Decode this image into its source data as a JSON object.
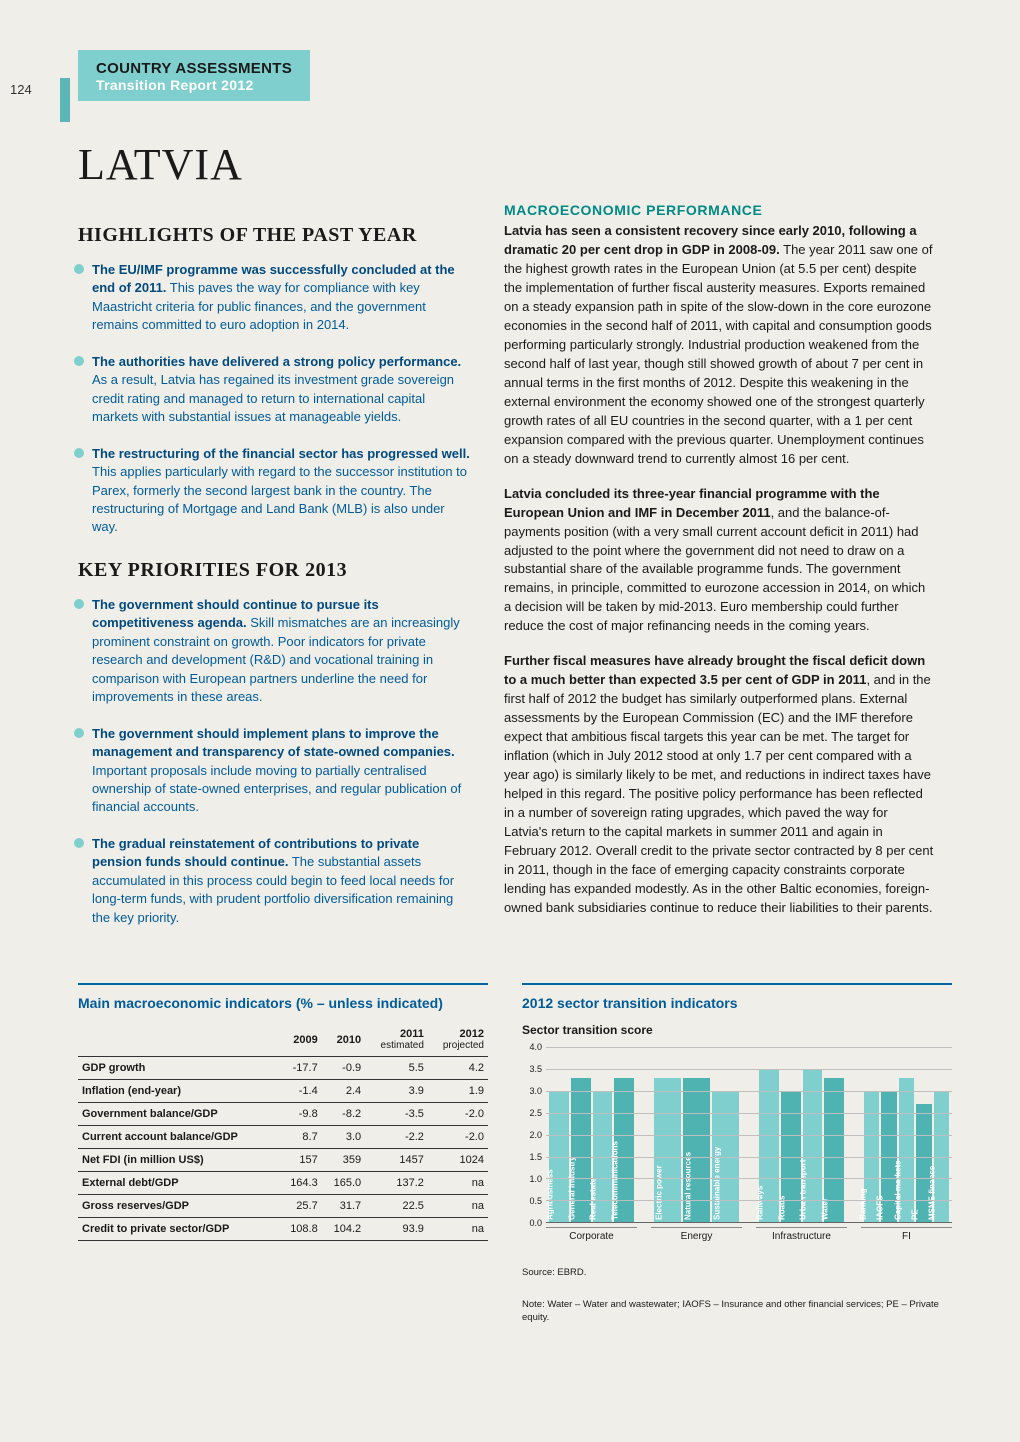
{
  "page_number": "124",
  "header": {
    "line1": "COUNTRY ASSESSMENTS",
    "line2": "Transition Report 2012"
  },
  "country": "LATVIA",
  "highlights": {
    "heading": "HIGHLIGHTS OF THE PAST YEAR",
    "items": [
      {
        "lead": "The EU/IMF programme was successfully concluded at the end of 2011.",
        "rest": " This paves the way for compliance with key Maastricht criteria for public finances, and the government remains committed to euro adoption in 2014."
      },
      {
        "lead": "The authorities have delivered a strong policy performance.",
        "rest": " As a result, Latvia has regained its investment grade sovereign credit rating and managed to return to international capital markets with substantial issues at manageable yields."
      },
      {
        "lead": "The restructuring of the financial sector has progressed well.",
        "rest": " This applies particularly with regard to the successor institution to Parex, formerly the second largest bank in the country. The restructuring of Mortgage and Land Bank (MLB) is also under way."
      }
    ]
  },
  "priorities": {
    "heading": "KEY PRIORITIES FOR 2013",
    "items": [
      {
        "lead": "The government should continue to pursue its competitiveness agenda.",
        "rest": " Skill mismatches are an increasingly prominent constraint on growth. Poor indicators for private research and development (R&D) and vocational training in comparison with European partners underline the need for improvements in these areas."
      },
      {
        "lead": "The government should implement plans to improve the management and transparency of state-owned companies. ",
        "rest": " Important proposals include moving to partially centralised ownership of state-owned enterprises, and regular publication of financial accounts."
      },
      {
        "lead": "The gradual reinstatement of contributions to private pension funds should continue.",
        "rest": " The substantial assets accumulated in this process could begin to feed local needs for long-term funds, with prudent portfolio diversification remaining the key priority."
      }
    ]
  },
  "macro": {
    "heading": "MACROECONOMIC PERFORMANCE",
    "paras": [
      {
        "lead": "Latvia has seen a consistent recovery since early 2010, following a dramatic 20 per cent drop in GDP in 2008-09.",
        "rest": " The year 2011 saw one of the highest growth rates in the European Union (at 5.5 per cent) despite the implementation of further fiscal austerity measures. Exports remained on a steady expansion path in spite of the slow-down in the core eurozone economies in the second half of 2011, with capital and consumption goods performing particularly strongly. Industrial production weakened from the second half of last year, though still showed growth of about 7 per cent in annual terms in the first months of 2012. Despite this weakening in the external environment the economy showed one of the strongest quarterly growth rates of all EU countries in the second quarter, with a 1 per cent expansion compared with the previous quarter. Unemployment continues on a steady downward trend to currently almost 16 per cent."
      },
      {
        "lead": "Latvia concluded its three-year financial programme with the European Union and IMF in December 2011",
        "rest": ", and the balance-of-payments position (with a very small current account deficit in 2011) had adjusted to the point where the government did not need to draw on a substantial share of the available programme funds. The government remains, in principle, committed to eurozone accession in 2014, on which a decision will be taken by mid-2013. Euro membership could further reduce the cost of major refinancing needs in the coming years."
      },
      {
        "lead": "Further fiscal measures have already brought the fiscal deficit down to a much better than expected 3.5 per cent of GDP in 2011",
        "rest": ", and in the first half of 2012 the budget has similarly outperformed plans. External assessments by the European Commission (EC) and the IMF therefore expect that ambitious fiscal targets this year can be met. The target for inflation (which in July 2012 stood at only 1.7 per cent compared with a year ago) is similarly likely to be met, and reductions in indirect taxes have helped in this regard. The positive policy performance has been reflected in a number of sovereign rating upgrades, which paved the way for Latvia's return to the capital markets in summer 2011 and again in February 2012. Overall credit to the private sector contracted by 8 per cent in 2011, though in the face of emerging capacity constraints corporate lending has expanded modestly. As in the other Baltic economies, foreign-owned bank subsidiaries continue to reduce their liabilities to their parents."
      }
    ]
  },
  "table": {
    "title": "Main macroeconomic indicators (% – unless indicated)",
    "cols": [
      "",
      "2009",
      "2010",
      "2011",
      "2012"
    ],
    "subs": [
      "",
      "",
      "",
      "estimated",
      "projected"
    ],
    "rows": [
      [
        "GDP growth",
        "-17.7",
        "-0.9",
        "5.5",
        "4.2"
      ],
      [
        "Inflation (end-year)",
        "-1.4",
        "2.4",
        "3.9",
        "1.9"
      ],
      [
        "Government balance/GDP",
        "-9.8",
        "-8.2",
        "-3.5",
        "-2.0"
      ],
      [
        "Current account balance/GDP",
        "8.7",
        "3.0",
        "-2.2",
        "-2.0"
      ],
      [
        "Net FDI (in million US$)",
        "157",
        "359",
        "1457",
        "1024"
      ],
      [
        "External debt/GDP",
        "164.3",
        "165.0",
        "137.2",
        "na"
      ],
      [
        "Gross reserves/GDP",
        "25.7",
        "31.7",
        "22.5",
        "na"
      ],
      [
        "Credit to private sector/GDP",
        "108.8",
        "104.2",
        "93.9",
        "na"
      ]
    ]
  },
  "chart": {
    "title": "2012 sector transition indicators",
    "subtitle": "Sector transition score",
    "ylim": [
      0.0,
      4.0
    ],
    "ytick_step": 0.5,
    "background": "#f0eee8",
    "grid_color": "#bfbfbf",
    "colors": {
      "primary": "#7fcfce",
      "alt": "#4fb3b1"
    },
    "groups": [
      {
        "name": "Corporate",
        "bars": [
          {
            "label": "Agribusiness",
            "value": 3.0,
            "c": "primary"
          },
          {
            "label": "General industry",
            "value": 3.3,
            "c": "alt"
          },
          {
            "label": "Real estate",
            "value": 3.0,
            "c": "primary"
          },
          {
            "label": "Telecommunications",
            "value": 3.3,
            "c": "alt"
          }
        ]
      },
      {
        "name": "Energy",
        "bars": [
          {
            "label": "Electric power",
            "value": 3.3,
            "c": "primary"
          },
          {
            "label": "Natural resources",
            "value": 3.3,
            "c": "alt"
          },
          {
            "label": "Sustainable energy",
            "value": 3.0,
            "c": "primary"
          }
        ]
      },
      {
        "name": "Infrastructure",
        "bars": [
          {
            "label": "Railways",
            "value": 3.5,
            "c": "primary"
          },
          {
            "label": "Roads",
            "value": 3.0,
            "c": "alt"
          },
          {
            "label": "Urban transport",
            "value": 3.5,
            "c": "primary"
          },
          {
            "label": "Water",
            "value": 3.3,
            "c": "alt"
          }
        ]
      },
      {
        "name": "FI",
        "bars": [
          {
            "label": "Banking",
            "value": 3.0,
            "c": "primary"
          },
          {
            "label": "IAOFS",
            "value": 3.0,
            "c": "alt"
          },
          {
            "label": "Capital markets",
            "value": 3.3,
            "c": "primary"
          },
          {
            "label": "PE",
            "value": 2.7,
            "c": "alt"
          },
          {
            "label": "MSME finance",
            "value": 3.0,
            "c": "primary"
          }
        ]
      }
    ],
    "source": "Source: EBRD.",
    "note": "Note: Water – Water and wastewater; IAOFS – Insurance and other financial services; PE – Private equity."
  }
}
